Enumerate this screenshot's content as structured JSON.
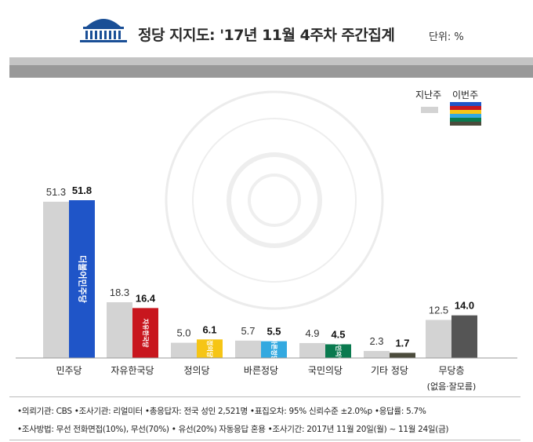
{
  "title": "정당 지지도: '17년 11월 4주차 주간집계",
  "unit": "단위: %",
  "legend": {
    "last_week": "지난주",
    "this_week": "이번주"
  },
  "colors": {
    "last_week": "#d3d3d3",
    "accent_gray": "#999999"
  },
  "chart_data": {
    "type": "bar",
    "categories": [
      "민주당",
      "자유한국당",
      "정의당",
      "바른정당",
      "국민의당",
      "기타 정당",
      "무당층"
    ],
    "category_sublabels": [
      "",
      "",
      "",
      "",
      "",
      "",
      "(없음·잘모름)"
    ],
    "series": [
      {
        "name": "지난주",
        "values": [
          51.3,
          18.3,
          5.0,
          5.7,
          4.9,
          2.3,
          12.5
        ]
      },
      {
        "name": "이번주",
        "values": [
          51.8,
          16.4,
          6.1,
          5.5,
          4.5,
          1.7,
          14.0
        ]
      }
    ],
    "this_week_colors": [
      "#1f55c8",
      "#c8161e",
      "#f6c515",
      "#33a9e0",
      "#0a7a4f",
      "#4b4b3c",
      "#555555"
    ],
    "party_marks": [
      "더불어민주당",
      "자유한국당",
      "정의당",
      "바른정당",
      "국민의당",
      "",
      ""
    ],
    "ylim": [
      0,
      60
    ],
    "legend_position": "top-right",
    "grid": false
  },
  "footer": {
    "line1": "•의뢰기관: CBS •조사기관: 리얼미터 •총응답자: 전국 성인 2,521명 •표집오차: 95% 신뢰수준 ±2.0%p •응답률: 5.7%",
    "line2": "•조사방법: 무선 전화면접(10%), 무선(70%) • 유선(20%) 자동응답 혼용 •조사기간: 2017년 11월 20일(월) ~ 11월 24일(금)"
  }
}
